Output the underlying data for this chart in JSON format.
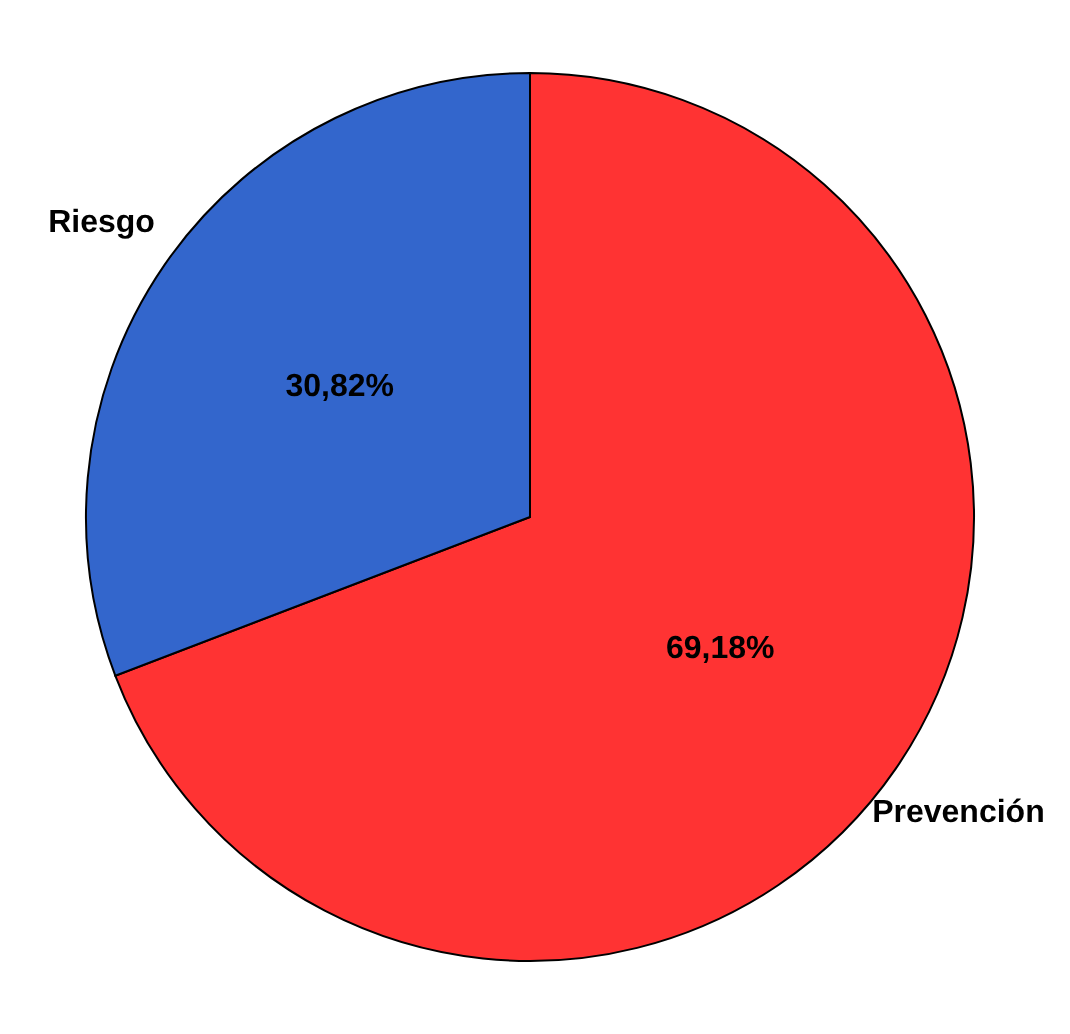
{
  "chart_data": {
    "type": "pie",
    "categories": [
      "Prevención",
      "Riesgo"
    ],
    "values": [
      69.18,
      30.82
    ],
    "colors": [
      "#ff3333",
      "#3366cc"
    ],
    "value_labels": [
      "69,18%",
      "30,82%"
    ]
  }
}
